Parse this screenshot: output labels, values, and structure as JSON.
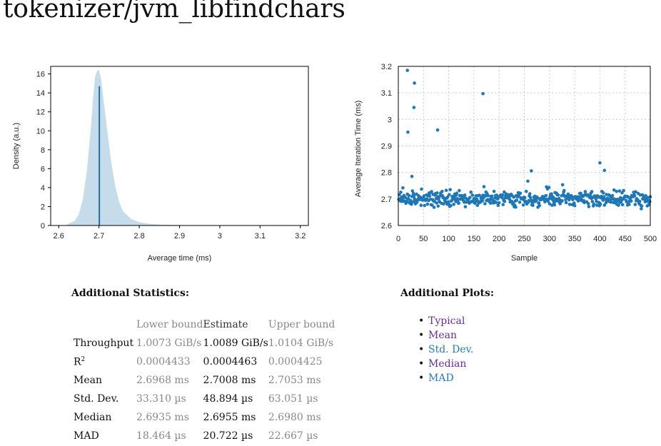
{
  "title": "tokenizer/jvm_libfindchars",
  "chart_data": [
    {
      "type": "area",
      "xlabel": "Average time (ms)",
      "ylabel": "Density (a.u.)",
      "xlim": [
        2.58,
        3.22
      ],
      "ylim": [
        0,
        16.8
      ],
      "xticks": [
        "2.6",
        "2.7",
        "2.8",
        "2.9",
        "3",
        "3.1",
        "3.2"
      ],
      "yticks": [
        "0",
        "2",
        "4",
        "6",
        "8",
        "10",
        "12",
        "14",
        "16"
      ],
      "density": {
        "x": [
          2.62,
          2.64,
          2.65,
          2.66,
          2.67,
          2.68,
          2.685,
          2.69,
          2.695,
          2.7,
          2.705,
          2.71,
          2.72,
          2.73,
          2.74,
          2.75,
          2.76,
          2.78,
          2.8,
          2.83,
          2.86,
          2.9,
          2.95,
          3.0
        ],
        "y": [
          0.1,
          0.5,
          1.2,
          2.8,
          5.8,
          10.5,
          13.3,
          15.6,
          16.3,
          16.4,
          15.5,
          13.8,
          10.2,
          6.8,
          4.2,
          2.5,
          1.5,
          0.7,
          0.35,
          0.15,
          0.08,
          0.05,
          0.03,
          0.02
        ]
      },
      "mean_line": {
        "x": 2.7008,
        "y": 14.7
      },
      "colors": {
        "fill": "#c6dcea",
        "line": "#1f6fa5"
      },
      "grid": false
    },
    {
      "type": "scatter",
      "xlabel": "Sample",
      "ylabel": "Average Iteration Time (ms)",
      "xlim": [
        0,
        500
      ],
      "ylim": [
        2.6,
        3.2
      ],
      "xticks": [
        "0",
        "50",
        "100",
        "150",
        "200",
        "250",
        "300",
        "350",
        "400",
        "450",
        "500"
      ],
      "yticks": [
        "2.6",
        "2.7",
        "2.8",
        "2.9",
        "3",
        "3.1",
        "3.2"
      ],
      "grid": true,
      "colors": {
        "point": "#1f77b4"
      },
      "outliers": [
        {
          "x": 18,
          "y": 3.185
        },
        {
          "x": 32,
          "y": 3.137
        },
        {
          "x": 31,
          "y": 3.045
        },
        {
          "x": 19,
          "y": 2.952
        },
        {
          "x": 78,
          "y": 2.96
        },
        {
          "x": 168,
          "y": 3.097
        },
        {
          "x": 27,
          "y": 2.785
        },
        {
          "x": 264,
          "y": 2.806
        },
        {
          "x": 400,
          "y": 2.836
        },
        {
          "x": 409,
          "y": 2.808
        }
      ],
      "bulk": {
        "count": 500,
        "center": 2.7,
        "spread": 0.022
      }
    }
  ],
  "stats": {
    "heading": "Additional Statistics:",
    "columns": [
      "Lower bound",
      "Estimate",
      "Upper bound"
    ],
    "rows": [
      {
        "label": "Throughput",
        "sup": "",
        "lower": "1.0073 GiB/s",
        "estimate": "1.0089 GiB/s",
        "upper": "1.0104 GiB/s"
      },
      {
        "label": "R",
        "sup": "2",
        "lower": "0.0004433",
        "estimate": "0.0004463",
        "upper": "0.0004425"
      },
      {
        "label": "Mean",
        "sup": "",
        "lower": "2.6968 ms",
        "estimate": "2.7008 ms",
        "upper": "2.7053 ms"
      },
      {
        "label": "Std. Dev.",
        "sup": "",
        "lower": "33.310 µs",
        "estimate": "48.894 µs",
        "upper": "63.051 µs"
      },
      {
        "label": "Median",
        "sup": "",
        "lower": "2.6935 ms",
        "estimate": "2.6955 ms",
        "upper": "2.6980 ms"
      },
      {
        "label": "MAD",
        "sup": "",
        "lower": "18.464 µs",
        "estimate": "20.722 µs",
        "upper": "22.667 µs"
      }
    ]
  },
  "plots": {
    "heading": "Additional Plots:",
    "links": [
      {
        "label": "Typical",
        "color": "purple"
      },
      {
        "label": "Mean",
        "color": "purple"
      },
      {
        "label": "Std. Dev.",
        "color": "blue"
      },
      {
        "label": "Median",
        "color": "purple"
      },
      {
        "label": "MAD",
        "color": "blue"
      }
    ]
  }
}
